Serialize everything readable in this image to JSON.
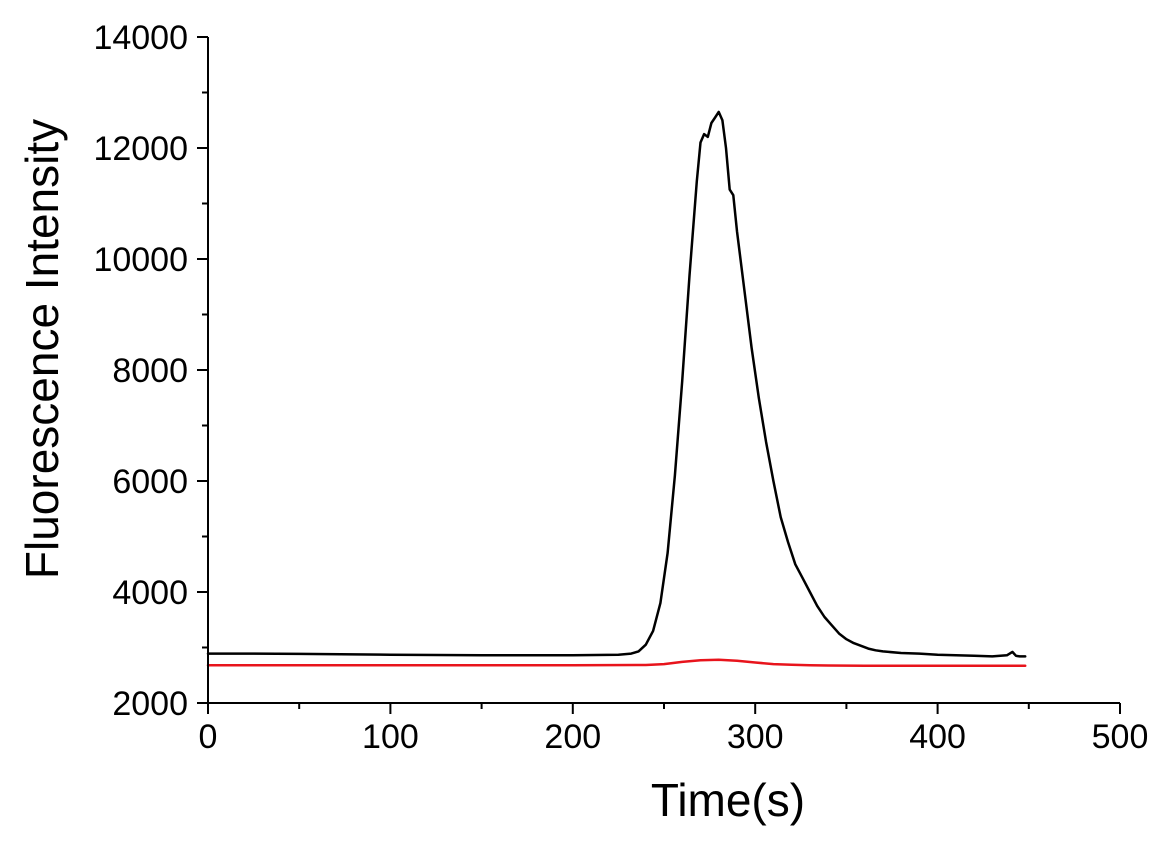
{
  "chart_data": {
    "type": "line",
    "title": "",
    "xlabel": "Time(s)",
    "ylabel": "Fluorescence Intensity",
    "xlim": [
      0,
      500
    ],
    "ylim": [
      2000,
      14000
    ],
    "xticks": [
      0,
      100,
      200,
      300,
      400,
      500
    ],
    "yticks": [
      2000,
      4000,
      6000,
      8000,
      10000,
      12000,
      14000
    ],
    "grid": false,
    "legend": "none",
    "series": [
      {
        "color": "#000000",
        "x": [
          0,
          20,
          50,
          100,
          150,
          200,
          225,
          232,
          236,
          240,
          244,
          248,
          252,
          256,
          260,
          264,
          268,
          270,
          272,
          274,
          276,
          278,
          280,
          282,
          284,
          286,
          288,
          290,
          294,
          298,
          302,
          306,
          310,
          314,
          318,
          322,
          326,
          330,
          334,
          338,
          342,
          346,
          350,
          354,
          358,
          362,
          366,
          370,
          380,
          390,
          400,
          410,
          420,
          430,
          438,
          441,
          443,
          445,
          448
        ],
        "values": [
          2890,
          2890,
          2885,
          2870,
          2860,
          2860,
          2870,
          2890,
          2930,
          3050,
          3300,
          3800,
          4700,
          6100,
          7800,
          9700,
          11400,
          12100,
          12250,
          12200,
          12450,
          12550,
          12650,
          12500,
          12000,
          11250,
          11150,
          10500,
          9450,
          8400,
          7500,
          6700,
          6000,
          5350,
          4900,
          4500,
          4250,
          4000,
          3750,
          3550,
          3400,
          3250,
          3150,
          3080,
          3030,
          2980,
          2950,
          2930,
          2900,
          2890,
          2870,
          2860,
          2850,
          2840,
          2860,
          2920,
          2850,
          2840,
          2840
        ]
      },
      {
        "color": "#e8141c",
        "x": [
          0,
          100,
          200,
          240,
          250,
          260,
          270,
          280,
          290,
          300,
          310,
          320,
          330,
          340,
          360,
          400,
          448
        ],
        "values": [
          2680,
          2680,
          2680,
          2685,
          2700,
          2740,
          2770,
          2780,
          2760,
          2730,
          2700,
          2690,
          2680,
          2675,
          2670,
          2670,
          2670
        ]
      }
    ]
  }
}
